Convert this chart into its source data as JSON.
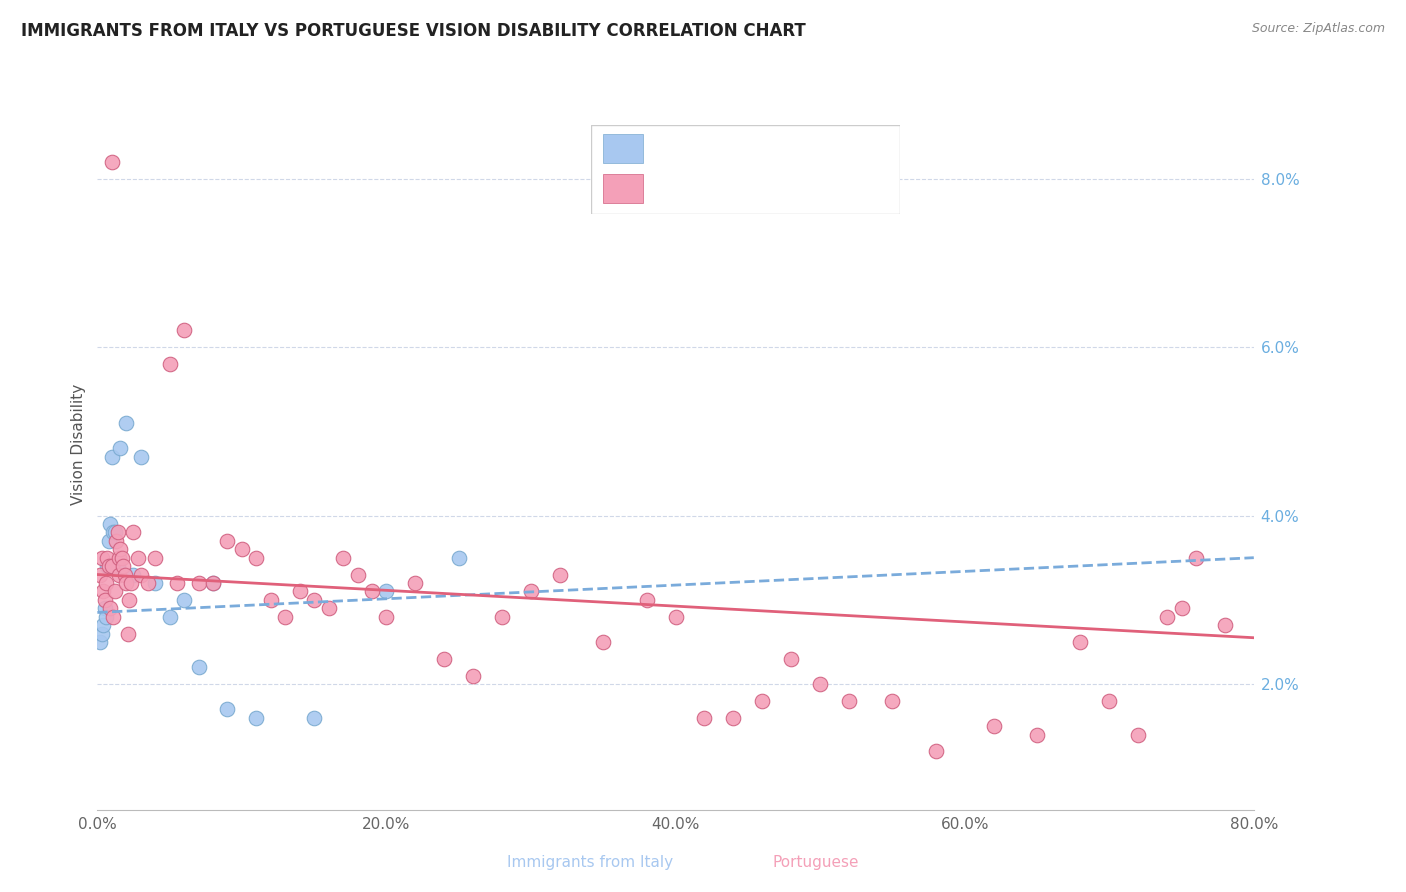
{
  "title": "IMMIGRANTS FROM ITALY VS PORTUGUESE VISION DISABILITY CORRELATION CHART",
  "source": "Source: ZipAtlas.com",
  "xlabel_label": "Immigrants from Italy",
  "xlabel_label2": "Portuguese",
  "ylabel": "Vision Disability",
  "x_tick_labels": [
    "0.0%",
    "20.0%",
    "40.0%",
    "60.0%",
    "80.0%"
  ],
  "x_tick_values": [
    0.0,
    20.0,
    40.0,
    60.0,
    80.0
  ],
  "y_tick_labels": [
    "2.0%",
    "4.0%",
    "6.0%",
    "8.0%"
  ],
  "y_tick_values": [
    2.0,
    4.0,
    6.0,
    8.0
  ],
  "xlim": [
    0,
    80
  ],
  "ylim": [
    0.5,
    9.2
  ],
  "color_italy": "#a8c8f0",
  "color_italian_edge": "#7aaad0",
  "color_portuguese": "#f4a0b8",
  "color_portuguese_edge": "#d06080",
  "color_italy_line": "#7aabdb",
  "color_portuguese_line": "#e0607a",
  "italy_x": [
    0.2,
    0.3,
    0.4,
    0.5,
    0.6,
    0.7,
    0.8,
    0.9,
    1.0,
    1.1,
    1.2,
    1.4,
    1.6,
    2.0,
    2.5,
    3.0,
    4.0,
    5.0,
    6.0,
    7.0,
    8.0,
    9.0,
    11.0,
    15.0,
    20.0,
    25.0
  ],
  "italy_y": [
    2.5,
    2.6,
    2.7,
    2.9,
    2.8,
    3.4,
    3.7,
    3.9,
    4.7,
    3.8,
    3.8,
    3.4,
    4.8,
    5.1,
    3.3,
    4.7,
    3.2,
    2.8,
    3.0,
    2.2,
    3.2,
    1.7,
    1.6,
    1.6,
    3.1,
    3.5
  ],
  "port_x": [
    0.2,
    0.3,
    0.4,
    0.5,
    0.6,
    0.7,
    0.8,
    0.9,
    1.0,
    1.0,
    1.1,
    1.2,
    1.3,
    1.4,
    1.5,
    1.5,
    1.6,
    1.7,
    1.8,
    1.9,
    2.0,
    2.1,
    2.2,
    2.3,
    2.5,
    2.8,
    3.0,
    3.5,
    4.0,
    5.0,
    5.5,
    6.0,
    7.0,
    8.0,
    9.0,
    10.0,
    11.0,
    12.0,
    13.0,
    14.0,
    15.0,
    16.0,
    17.0,
    18.0,
    19.0,
    20.0,
    22.0,
    24.0,
    26.0,
    28.0,
    30.0,
    32.0,
    35.0,
    38.0,
    40.0,
    42.0,
    44.0,
    46.0,
    48.0,
    50.0,
    52.0,
    55.0,
    58.0,
    62.0,
    65.0,
    68.0,
    70.0,
    72.0,
    74.0,
    75.0,
    76.0,
    78.0
  ],
  "port_y": [
    3.3,
    3.5,
    3.1,
    3.0,
    3.2,
    3.5,
    3.4,
    2.9,
    3.4,
    8.2,
    2.8,
    3.1,
    3.7,
    3.8,
    3.5,
    3.3,
    3.6,
    3.5,
    3.4,
    3.3,
    3.2,
    2.6,
    3.0,
    3.2,
    3.8,
    3.5,
    3.3,
    3.2,
    3.5,
    5.8,
    3.2,
    6.2,
    3.2,
    3.2,
    3.7,
    3.6,
    3.5,
    3.0,
    2.8,
    3.1,
    3.0,
    2.9,
    3.5,
    3.3,
    3.1,
    2.8,
    3.2,
    2.3,
    2.1,
    2.8,
    3.1,
    3.3,
    2.5,
    3.0,
    2.8,
    1.6,
    1.6,
    1.8,
    2.3,
    2.0,
    1.8,
    1.8,
    1.2,
    1.5,
    1.4,
    2.5,
    1.8,
    1.4,
    2.8,
    2.9,
    3.5,
    2.7
  ],
  "italy_line_x0": 0,
  "italy_line_x1": 80,
  "italy_line_y0": 2.85,
  "italy_line_y1": 3.5,
  "port_line_x0": 0,
  "port_line_x1": 80,
  "port_line_y0": 3.3,
  "port_line_y1": 2.55
}
